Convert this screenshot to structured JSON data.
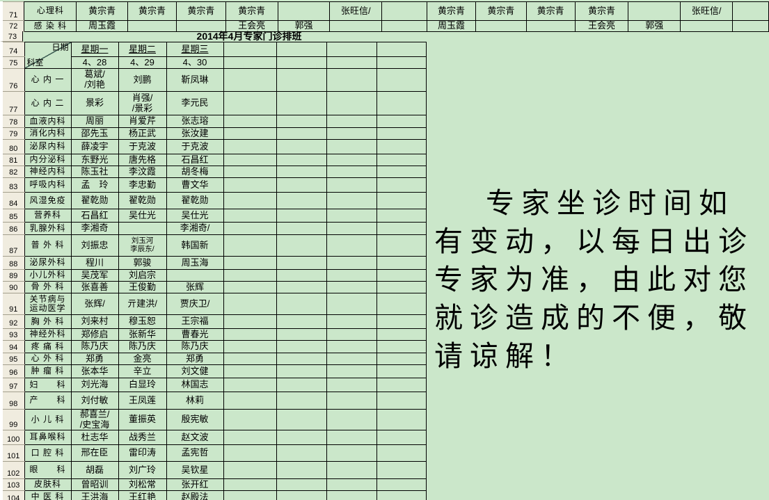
{
  "colors": {
    "cell_background": "#cbe7ca",
    "row_header_background": "#f0ecdf",
    "grid_border": "#000000",
    "row_header_separator": "#a39f8e"
  },
  "top_section": {
    "rows": [
      {
        "num": "71",
        "cells": [
          "心理科",
          "黄宗青",
          "黄宗青",
          "黄宗青",
          "黄宗青",
          "",
          "张旺信/",
          "",
          "黄宗青",
          "黄宗青",
          "黄宗青",
          "黄宗青",
          "",
          "张旺信/",
          ""
        ]
      },
      {
        "num": "72",
        "cells": [
          "感 染 科",
          "周玉霞",
          "",
          "",
          "王会亮",
          "郭强",
          "",
          "",
          "周玉霞",
          "",
          "",
          "王会亮",
          "郭强",
          "",
          ""
        ]
      }
    ]
  },
  "title_row": {
    "num": "73",
    "title": "2014年4月专家门诊排班"
  },
  "schedule_table": {
    "corner": {
      "date_label": "日期",
      "dept_label": "科室"
    },
    "header_row": {
      "num": "74",
      "days": [
        "星期一",
        "星期二",
        "星期三"
      ]
    },
    "date_row": {
      "num": "75",
      "dates": [
        "4、28",
        "4、29",
        "4、30"
      ]
    },
    "rows": [
      {
        "num": "76",
        "dept": "心 内 一",
        "cells": [
          "葛斌/\n/刘艳",
          "刘鹏",
          "靳凤琳"
        ]
      },
      {
        "num": "77",
        "dept": "心 内 二",
        "cells": [
          "景彩",
          "肖强/\n/景彩",
          "李元民"
        ]
      },
      {
        "num": "78",
        "dept": "血液内科",
        "cells": [
          "周丽",
          "肖爱芹",
          "张志瑢"
        ]
      },
      {
        "num": "79",
        "dept": "消化内科",
        "cells": [
          "邵先玉",
          "杨正武",
          "张汝建"
        ]
      },
      {
        "num": "80",
        "dept": "泌尿内科",
        "cells": [
          "薛凌宇",
          "于克波",
          "于克波"
        ]
      },
      {
        "num": "81",
        "dept": "内分泌科",
        "cells": [
          "东野光",
          "唐先格",
          "石昌红"
        ]
      },
      {
        "num": "82",
        "dept": "神经内科",
        "cells": [
          "陈玉社",
          "李汶霞",
          "胡冬梅"
        ]
      },
      {
        "num": "83",
        "dept": "呼吸内科",
        "cells": [
          "孟　玲",
          "李忠勤",
          "曹文华"
        ]
      },
      {
        "num": "84",
        "dept": "风湿免疫",
        "cells": [
          "翟乾勋",
          "翟乾勋",
          "翟乾勋"
        ]
      },
      {
        "num": "85",
        "dept": "营养科",
        "cells": [
          "石昌红",
          "吴仕光",
          "吴仕光"
        ]
      },
      {
        "num": "86",
        "dept": "乳腺外科",
        "cells": [
          "李湘奇",
          "",
          "李湘奇/"
        ]
      },
      {
        "num": "87",
        "dept": "普 外 科",
        "cells": [
          "刘振忠",
          "刘玉河\n李辰东/",
          "韩国新"
        ]
      },
      {
        "num": "88",
        "dept": "泌尿外科",
        "cells": [
          "程川",
          "郭骏",
          "周玉海"
        ]
      },
      {
        "num": "89",
        "dept": "小儿外科",
        "cells": [
          "吴茂军",
          "刘启宗",
          ""
        ]
      },
      {
        "num": "90",
        "dept": "骨 外 科",
        "cells": [
          "张喜善",
          "王俊勤",
          "张辉"
        ]
      },
      {
        "num": "91",
        "dept": "关节病与\n运动医学",
        "cells": [
          "张辉/",
          "亓建洪/",
          "贾庆卫/"
        ]
      },
      {
        "num": "92",
        "dept": "胸 外 科",
        "cells": [
          "刘来村",
          "穆玉恕",
          "王宗福"
        ]
      },
      {
        "num": "93",
        "dept": "神经外科",
        "cells": [
          "郑修启",
          "张新华",
          "曹春光"
        ]
      },
      {
        "num": "94",
        "dept": "疼 痛 科",
        "cells": [
          "陈乃庆",
          "陈乃庆",
          "陈乃庆"
        ]
      },
      {
        "num": "95",
        "dept": "心 外 科",
        "cells": [
          "郑勇",
          "金亮",
          "郑勇"
        ]
      },
      {
        "num": "96",
        "dept": "肿 瘤 科",
        "cells": [
          "张本华",
          "辛立",
          "刘文健"
        ]
      },
      {
        "num": "97",
        "dept": "妇　　科",
        "cells": [
          "刘光海",
          "白显玲",
          "林国志"
        ]
      },
      {
        "num": "98",
        "dept": "产　　科",
        "cells": [
          "刘付敏",
          "王凤莲",
          "林莉"
        ]
      },
      {
        "num": "99",
        "dept": "小 儿 科",
        "cells": [
          "郝喜兰/\n/史宝海",
          "董振英",
          "殷宪敏"
        ]
      },
      {
        "num": "100",
        "dept": "耳鼻喉科",
        "cells": [
          "杜志华",
          "战秀兰",
          "赵文波"
        ]
      },
      {
        "num": "101",
        "dept": "口 腔 科",
        "cells": [
          "邢在臣",
          "雷印涛",
          "孟宪哲"
        ]
      },
      {
        "num": "102",
        "dept": "眼　　科",
        "cells": [
          "胡磊",
          "刘广玲",
          "吴钦星"
        ]
      },
      {
        "num": "103",
        "dept": "皮肤科",
        "cells": [
          "曾昭训",
          "刘松常",
          "张开红"
        ]
      },
      {
        "num": "104",
        "dept": "中 医 科",
        "cells": [
          "王洪海",
          "王红艳",
          "赵殿法"
        ]
      }
    ]
  },
  "notice": {
    "full_text": "专家坐诊时间如有变动，以每日出诊专家为准，由此对您就诊造成的不便，敬请谅解！",
    "lines": [
      "专家坐诊时间如",
      "有变动，以每日出诊",
      "专家为准，由此对您",
      "就诊造成的不便，敬",
      "请谅解！"
    ]
  }
}
